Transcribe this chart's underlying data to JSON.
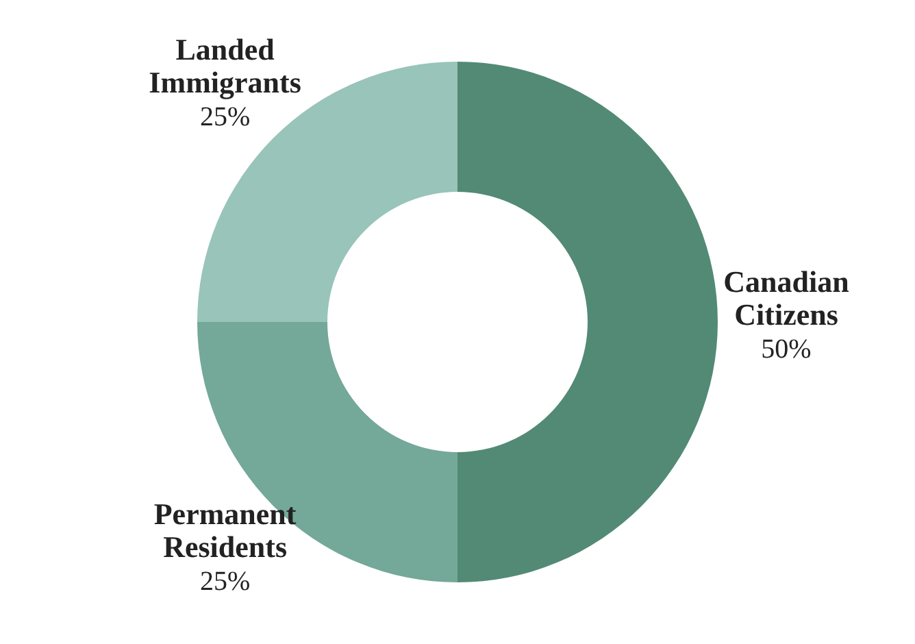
{
  "chart_data": {
    "type": "donut",
    "categories": [
      "Canadian Citizens",
      "Permanent Residents",
      "Landed Immigrants"
    ],
    "values": [
      50,
      25,
      25
    ],
    "colors": [
      "#528a75",
      "#74a898",
      "#98c4ba"
    ],
    "value_labels": [
      "50%",
      "25%",
      "25%"
    ]
  }
}
